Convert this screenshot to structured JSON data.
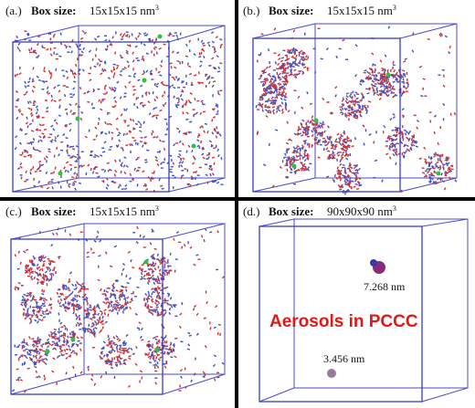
{
  "panels": [
    {
      "label": "(a.)",
      "box_size_label": "Box size:",
      "box_size": "15x15x15 nm",
      "box_size_exponent": "3"
    },
    {
      "label": "(b.)",
      "box_size_label": "Box size:",
      "box_size": "15x15x15 nm",
      "box_size_exponent": "3"
    },
    {
      "label": "(c.)",
      "box_size_label": "Box size:",
      "box_size": "15x15x15 nm",
      "box_size_exponent": "3"
    },
    {
      "label": "(d.)",
      "box_size_label": "Box size:",
      "box_size": "90x90x90 nm",
      "box_size_exponent": "3"
    }
  ],
  "annotations": {
    "large_particle": "7.268 nm",
    "small_particle": "3.456 nm",
    "caption": "Aerosols in PCCC"
  }
}
